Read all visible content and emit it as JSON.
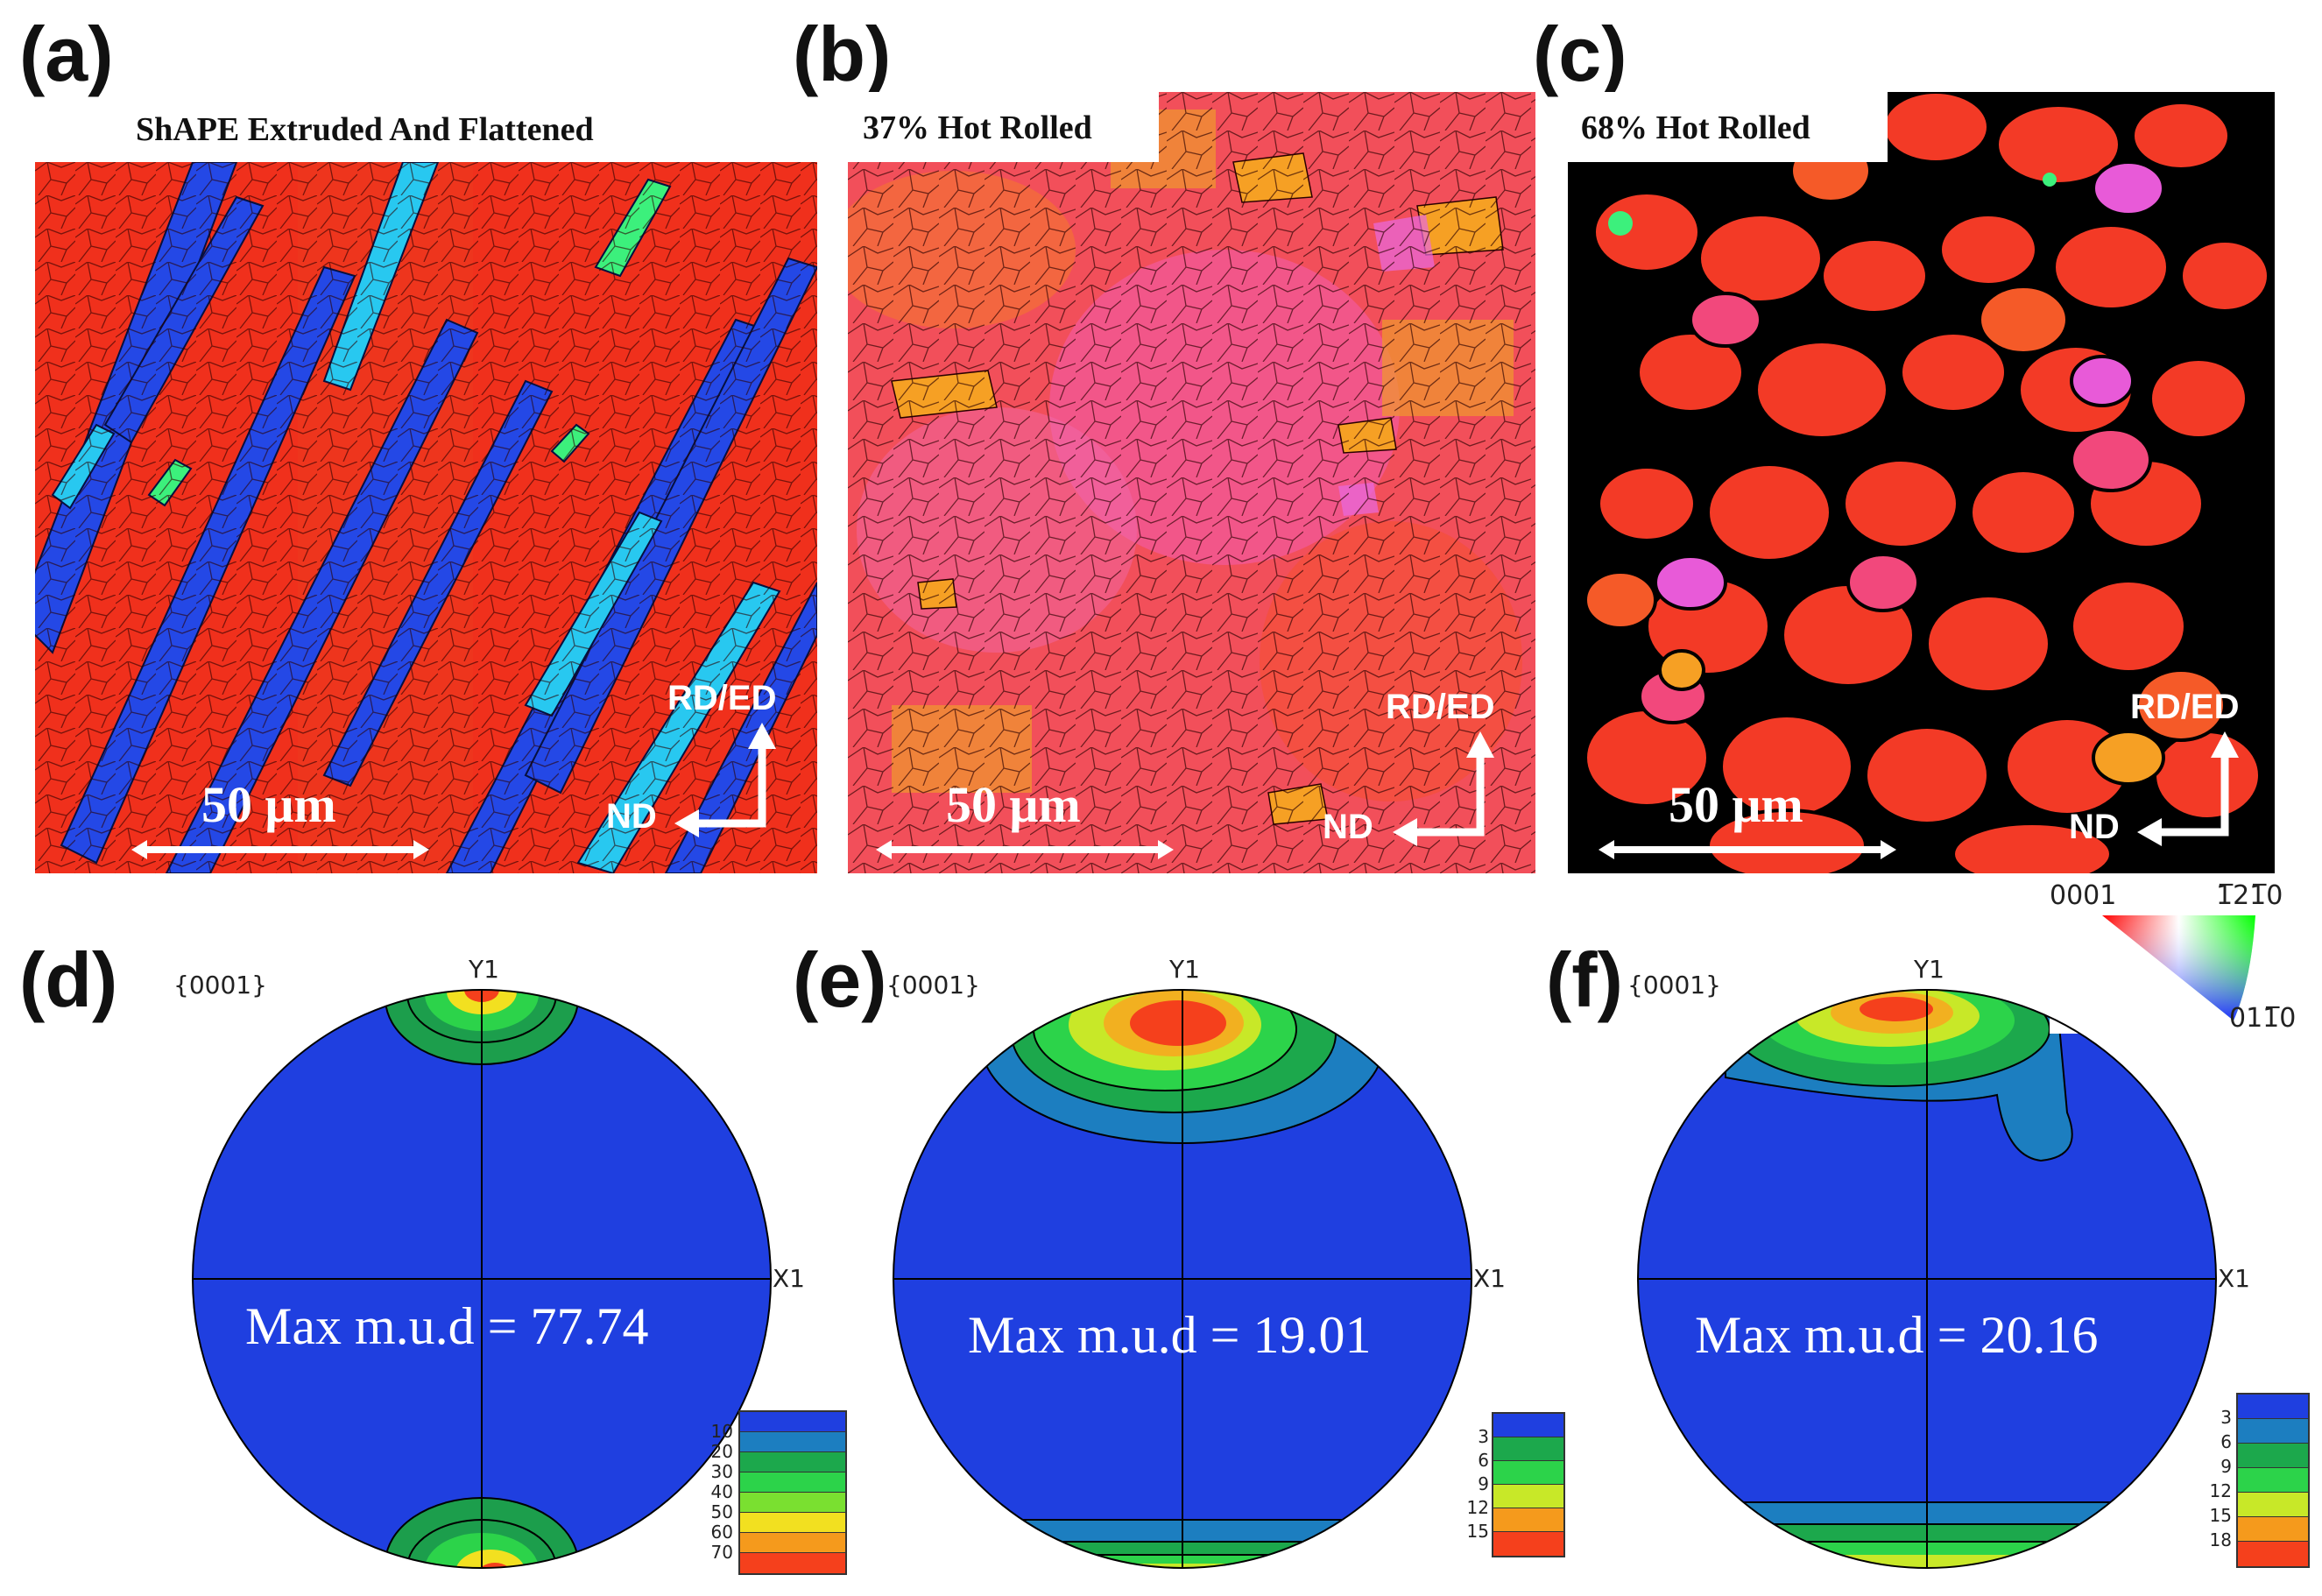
{
  "panels": {
    "a": {
      "label": "(a)",
      "title": "ShAPE Extruded And Flattened",
      "scale": "50 μm",
      "rd": "RD/ED",
      "nd": "ND"
    },
    "b": {
      "label": "(b)",
      "title": "37% Hot Rolled",
      "scale": "50 μm",
      "rd": "RD/ED",
      "nd": "ND"
    },
    "c": {
      "label": "(c)",
      "title": "68% Hot Rolled",
      "scale": "50 μm",
      "rd": "RD/ED",
      "nd": "ND"
    },
    "d": {
      "label": "(d)",
      "plane": "{0001}",
      "y_axis": "Y1",
      "x_axis": "X1",
      "mud": "Max m.u.d = 77.74",
      "legend": [
        "10",
        "20",
        "30",
        "40",
        "50",
        "60",
        "70"
      ]
    },
    "e": {
      "label": "(e)",
      "plane": "{0001}",
      "y_axis": "Y1",
      "x_axis": "X1",
      "mud": "Max m.u.d = 19.01",
      "legend": [
        "3",
        "6",
        "9",
        "12",
        "15"
      ]
    },
    "f": {
      "label": "(f)",
      "plane": "{0001}",
      "y_axis": "Y1",
      "x_axis": "X1",
      "mud": "Max m.u.d = 20.16",
      "legend": [
        "3",
        "6",
        "9",
        "12",
        "15",
        "18"
      ]
    }
  },
  "ipf_key": {
    "corner_left": "0001",
    "corner_right": "1̅21̅0",
    "corner_bottom": "011̅0"
  },
  "colors": {
    "red": "#f42a1a",
    "blue": "#1f3fe0",
    "pink": "#f2427a",
    "black": "#000000"
  }
}
